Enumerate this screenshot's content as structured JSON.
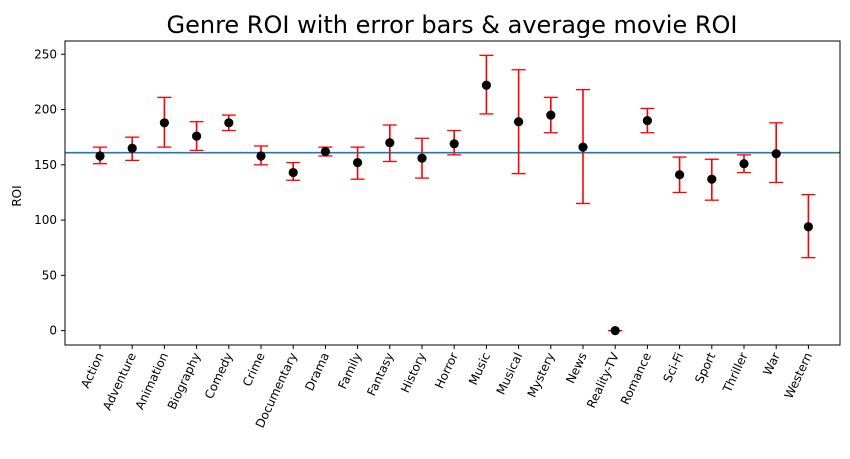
{
  "chart_data": {
    "type": "scatter",
    "title": "Genre ROI with error bars & average movie ROI",
    "xlabel": "",
    "ylabel": "ROI",
    "ylim": [
      -13,
      262
    ],
    "yticks": [
      0,
      50,
      100,
      150,
      200,
      250
    ],
    "grid": false,
    "categories": [
      "Action",
      "Adventure",
      "Animation",
      "Biography",
      "Comedy",
      "Crime",
      "Documentary",
      "Drama",
      "Family",
      "Fantasy",
      "History",
      "Horror",
      "Music",
      "Musical",
      "Mystery",
      "News",
      "Reality-TV",
      "Romance",
      "Sci-Fi",
      "Sport",
      "Thriller",
      "War",
      "Western"
    ],
    "series": [
      {
        "values": [
          158,
          165,
          188,
          176,
          188,
          158,
          143,
          162,
          152,
          170,
          156,
          169,
          222,
          189,
          195,
          166,
          0,
          190,
          141,
          137,
          151,
          160,
          94
        ],
        "error_low": [
          151,
          154,
          166,
          163,
          181,
          150,
          136,
          158,
          137,
          153,
          138,
          159,
          196,
          142,
          179,
          115,
          0,
          179,
          125,
          118,
          143,
          134,
          66
        ],
        "error_high": [
          166,
          175,
          211,
          189,
          195,
          167,
          152,
          166,
          166,
          186,
          174,
          181,
          249,
          236,
          211,
          218,
          0,
          201,
          157,
          155,
          159,
          188,
          123
        ],
        "marker_color": "#000000",
        "error_color": "#ff0000"
      }
    ],
    "reference_line": {
      "y": 161,
      "color": "#1f77b4"
    }
  }
}
